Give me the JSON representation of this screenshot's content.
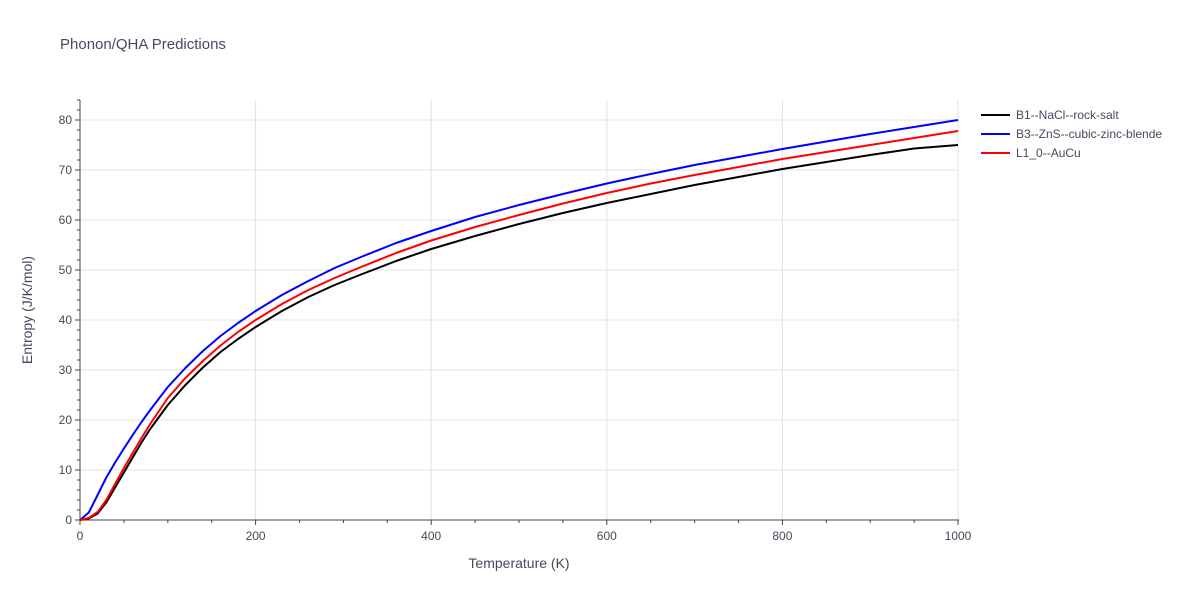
{
  "chart_data": {
    "type": "line",
    "title": "Phonon/QHA Predictions",
    "xlabel": "Temperature (K)",
    "ylabel": "Entropy (J/K/mol)",
    "xlim": [
      0,
      1000
    ],
    "ylim": [
      0,
      84
    ],
    "x_ticks": [
      0,
      200,
      400,
      600,
      800,
      1000
    ],
    "y_ticks": [
      0,
      10,
      20,
      30,
      40,
      50,
      60,
      70,
      80
    ],
    "grid": true,
    "legend_position": "right",
    "series": [
      {
        "name": "B1--NaCl--rock-salt",
        "color": "#000000",
        "x": [
          0,
          10,
          20,
          30,
          40,
          50,
          60,
          70,
          80,
          100,
          120,
          140,
          160,
          180,
          200,
          230,
          260,
          290,
          320,
          360,
          400,
          450,
          500,
          550,
          600,
          650,
          700,
          750,
          800,
          850,
          900,
          950,
          1000
        ],
        "y": [
          0,
          0.3,
          1.3,
          3.5,
          6.5,
          9.5,
          12.5,
          15.5,
          18.2,
          23.0,
          27.0,
          30.5,
          33.6,
          36.2,
          38.6,
          41.8,
          44.6,
          47.0,
          49.1,
          51.8,
          54.2,
          56.8,
          59.2,
          61.4,
          63.4,
          65.2,
          67.0,
          68.6,
          70.2,
          71.6,
          73.0,
          74.3,
          75.0
        ]
      },
      {
        "name": "B3--ZnS--cubic-zinc-blende",
        "color": "#0000ff",
        "x": [
          0,
          10,
          20,
          30,
          40,
          50,
          60,
          70,
          80,
          100,
          120,
          140,
          160,
          180,
          200,
          230,
          260,
          290,
          320,
          360,
          400,
          450,
          500,
          550,
          600,
          650,
          700,
          750,
          800,
          850,
          900,
          950,
          1000
        ],
        "y": [
          0,
          1.5,
          5.0,
          8.5,
          11.5,
          14.3,
          17.0,
          19.6,
          22.0,
          26.6,
          30.4,
          33.8,
          36.8,
          39.4,
          41.8,
          45.0,
          47.8,
          50.4,
          52.6,
          55.4,
          57.8,
          60.6,
          63.0,
          65.2,
          67.3,
          69.2,
          71.0,
          72.6,
          74.2,
          75.7,
          77.2,
          78.6,
          80.0
        ]
      },
      {
        "name": "L1_0--AuCu",
        "color": "#ff0000",
        "x": [
          0,
          10,
          20,
          30,
          40,
          50,
          60,
          70,
          80,
          100,
          120,
          140,
          160,
          180,
          200,
          230,
          260,
          290,
          320,
          360,
          400,
          450,
          500,
          550,
          600,
          650,
          700,
          750,
          800,
          850,
          900,
          950,
          1000
        ],
        "y": [
          0,
          0.4,
          1.6,
          4.0,
          7.2,
          10.4,
          13.4,
          16.4,
          19.2,
          24.4,
          28.4,
          31.8,
          34.9,
          37.6,
          40.0,
          43.2,
          46.0,
          48.4,
          50.6,
          53.4,
          55.9,
          58.6,
          61.0,
          63.3,
          65.4,
          67.3,
          69.0,
          70.6,
          72.2,
          73.6,
          75.0,
          76.4,
          77.8
        ]
      }
    ]
  }
}
